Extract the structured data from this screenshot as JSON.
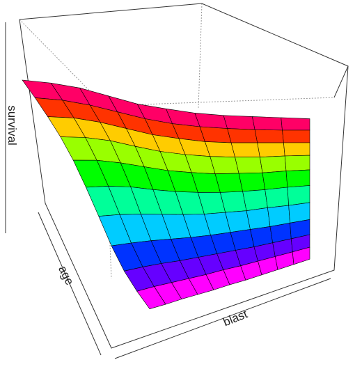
{
  "chart_data": {
    "type": "surface",
    "zlabel": "survival",
    "xlabel": "age",
    "ylabel": "blast",
    "z": [
      [
        0.07,
        0.06,
        0.06,
        0.05,
        0.04,
        0.04,
        0.03,
        0.03,
        0.03,
        0.03,
        0.03
      ],
      [
        0.08,
        0.08,
        0.07,
        0.06,
        0.05,
        0.05,
        0.04,
        0.04,
        0.04,
        0.04,
        0.04
      ],
      [
        0.13,
        0.13,
        0.12,
        0.1,
        0.09,
        0.08,
        0.07,
        0.06,
        0.06,
        0.06,
        0.06
      ],
      [
        0.26,
        0.25,
        0.23,
        0.2,
        0.17,
        0.15,
        0.14,
        0.13,
        0.12,
        0.12,
        0.12
      ],
      [
        0.46,
        0.44,
        0.4,
        0.35,
        0.3,
        0.26,
        0.24,
        0.22,
        0.22,
        0.21,
        0.21
      ],
      [
        0.65,
        0.63,
        0.58,
        0.5,
        0.43,
        0.38,
        0.34,
        0.32,
        0.31,
        0.31,
        0.3
      ],
      [
        0.81,
        0.78,
        0.71,
        0.62,
        0.53,
        0.47,
        0.42,
        0.4,
        0.38,
        0.38,
        0.37
      ],
      [
        0.91,
        0.88,
        0.81,
        0.7,
        0.6,
        0.53,
        0.48,
        0.45,
        0.43,
        0.43,
        0.42
      ],
      [
        0.96,
        0.93,
        0.85,
        0.74,
        0.63,
        0.56,
        0.5,
        0.47,
        0.46,
        0.45,
        0.44
      ],
      [
        0.99,
        0.95,
        0.87,
        0.76,
        0.65,
        0.57,
        0.52,
        0.49,
        0.47,
        0.46,
        0.46
      ],
      [
        1.0,
        0.96,
        0.89,
        0.77,
        0.65,
        0.58,
        0.52,
        0.49,
        0.48,
        0.47,
        0.46
      ]
    ]
  }
}
